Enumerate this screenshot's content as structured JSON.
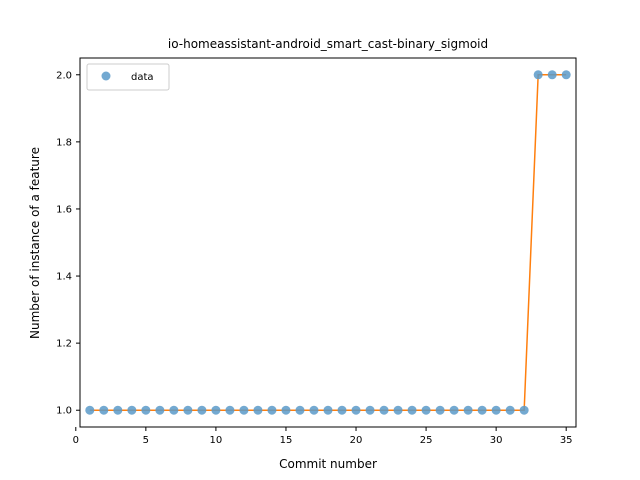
{
  "chart_data": {
    "type": "line",
    "title": "io-homeassistant-android_smart_cast-binary_sigmoid",
    "xlabel": "Commit number",
    "ylabel": "Number of instance of a feature",
    "xlim": [
      0.3,
      35.7
    ],
    "ylim": [
      0.95,
      2.05
    ],
    "xticks": [
      0,
      5,
      10,
      15,
      20,
      25,
      30,
      35
    ],
    "yticks": [
      1.0,
      1.2,
      1.4,
      1.6,
      1.8,
      2.0
    ],
    "ytick_labels": [
      "1.0",
      "1.2",
      "1.4",
      "1.6",
      "1.8",
      "2.0"
    ],
    "legend": {
      "placement": "top-left",
      "entries": [
        "data"
      ]
    },
    "grid": false,
    "series": [
      {
        "name": "data",
        "style": "scatter",
        "color": "#5b9ac9",
        "x": [
          1,
          2,
          3,
          4,
          5,
          6,
          7,
          8,
          9,
          10,
          11,
          12,
          13,
          14,
          15,
          16,
          17,
          18,
          19,
          20,
          21,
          22,
          23,
          24,
          25,
          26,
          27,
          28,
          29,
          30,
          31,
          32,
          33,
          34,
          35
        ],
        "y": [
          1,
          1,
          1,
          1,
          1,
          1,
          1,
          1,
          1,
          1,
          1,
          1,
          1,
          1,
          1,
          1,
          1,
          1,
          1,
          1,
          1,
          1,
          1,
          1,
          1,
          1,
          1,
          1,
          1,
          1,
          1,
          1,
          2,
          2,
          2
        ]
      },
      {
        "style": "line",
        "color": "#ff7f0e",
        "x": [
          1,
          2,
          3,
          4,
          5,
          6,
          7,
          8,
          9,
          10,
          11,
          12,
          13,
          14,
          15,
          16,
          17,
          18,
          19,
          20,
          21,
          22,
          23,
          24,
          25,
          26,
          27,
          28,
          29,
          30,
          31,
          32,
          33,
          34,
          35
        ],
        "y": [
          1,
          1,
          1,
          1,
          1,
          1,
          1,
          1,
          1,
          1,
          1,
          1,
          1,
          1,
          1,
          1,
          1,
          1,
          1,
          1,
          1,
          1,
          1,
          1,
          1,
          1,
          1,
          1,
          1,
          1,
          1,
          1,
          2,
          2,
          2
        ]
      }
    ]
  }
}
